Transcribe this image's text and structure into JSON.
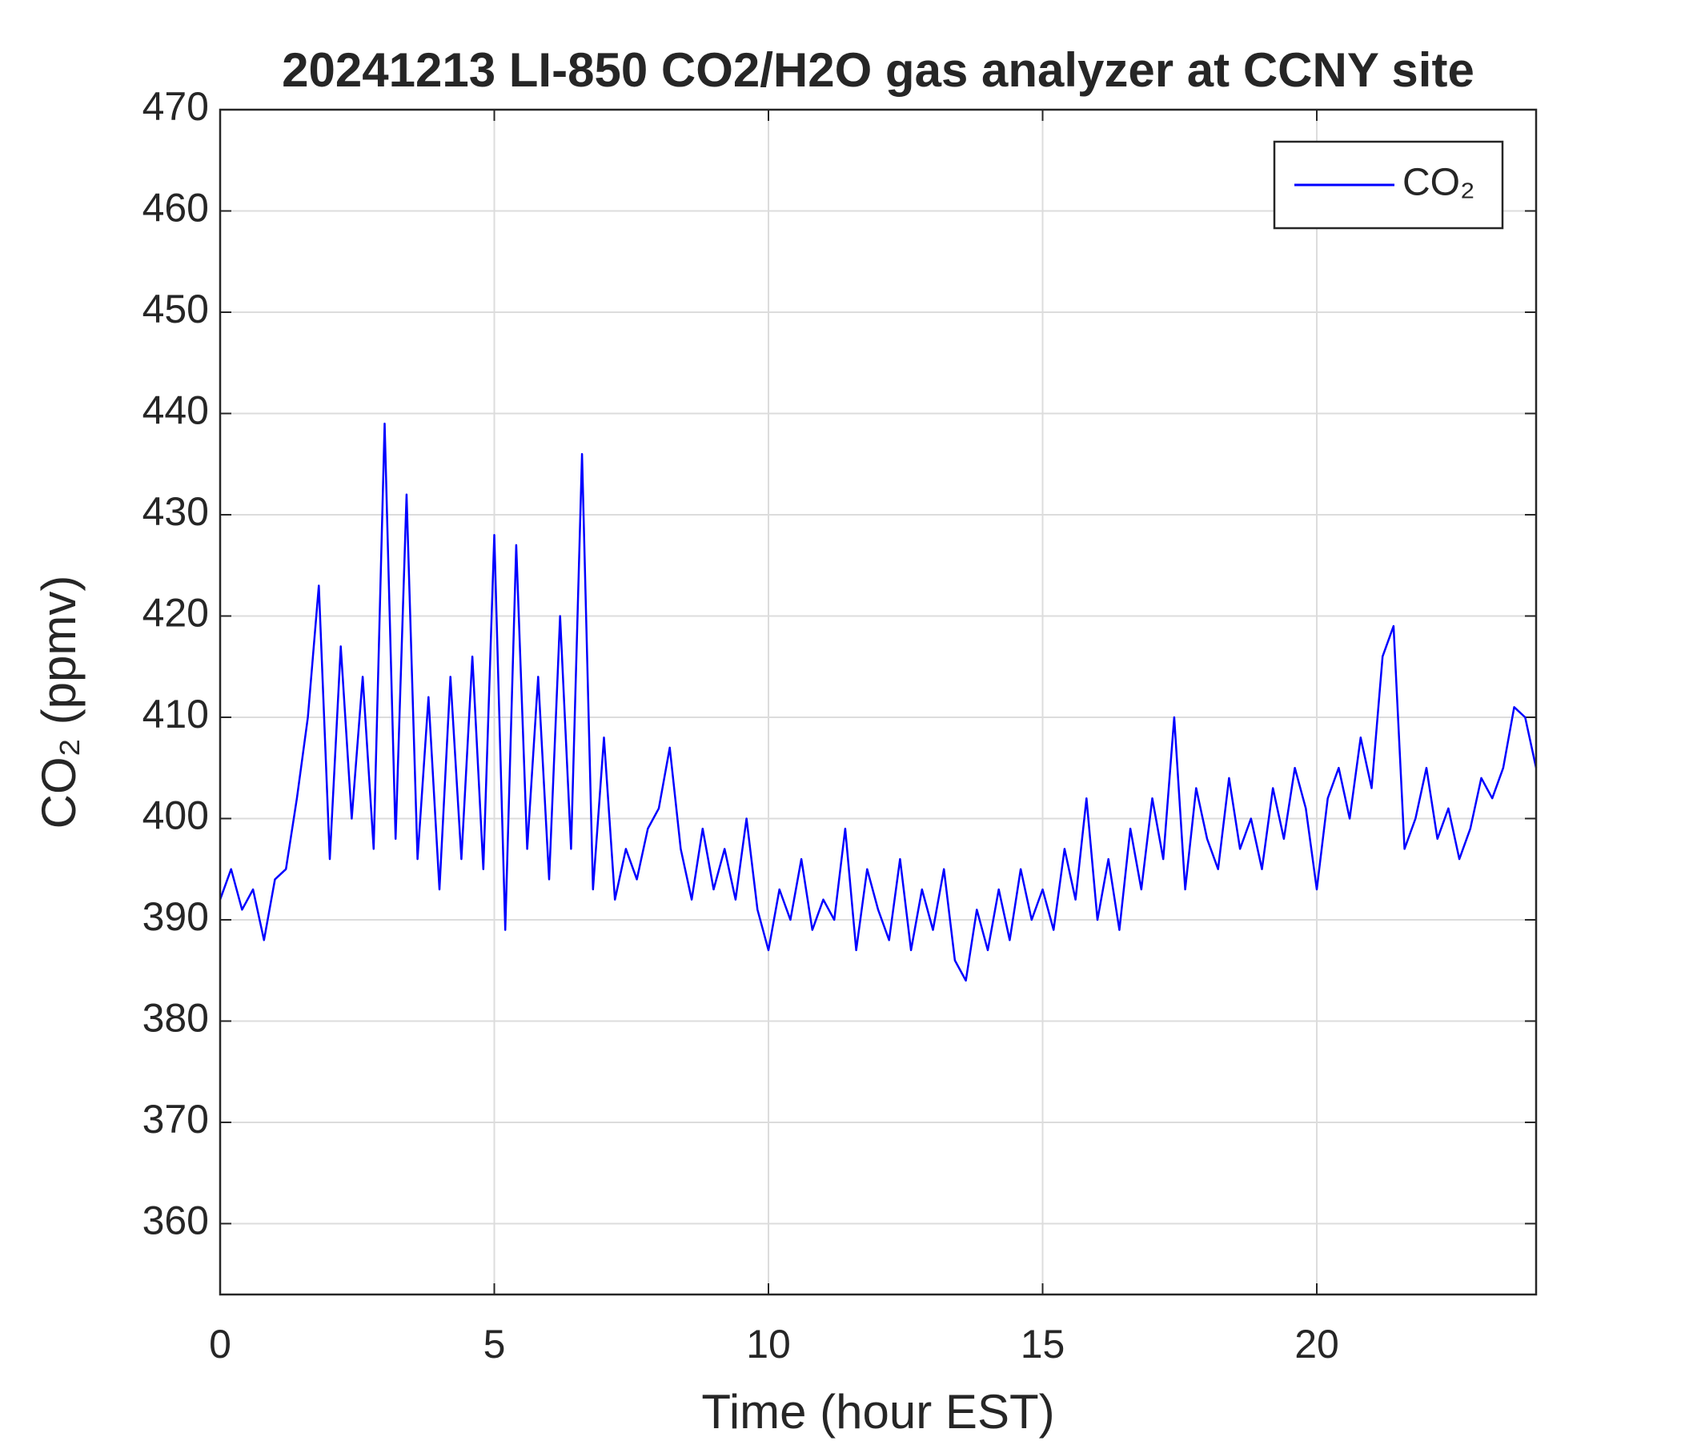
{
  "chart_data": {
    "type": "line",
    "title": "20241213 LI-850 CO2/H2O gas analyzer at CCNY site",
    "xlabel": "Time (hour EST)",
    "ylabel": "CO₂ (ppmv)",
    "x": [
      0,
      0.2,
      0.4,
      0.6,
      0.8,
      1,
      1.2,
      1.4,
      1.6,
      1.8,
      2,
      2.2,
      2.4,
      2.6,
      2.8,
      3,
      3.2,
      3.4,
      3.6,
      3.8,
      4,
      4.2,
      4.4,
      4.6,
      4.8,
      5,
      5.2,
      5.4,
      5.6,
      5.8,
      6,
      6.2,
      6.4,
      6.6,
      6.8,
      7,
      7.2,
      7.4,
      7.6,
      7.8,
      8,
      8.2,
      8.4,
      8.6,
      8.8,
      9,
      9.2,
      9.4,
      9.6,
      9.8,
      10,
      10.2,
      10.4,
      10.6,
      10.8,
      11,
      11.2,
      11.4,
      11.6,
      11.8,
      12,
      12.2,
      12.4,
      12.6,
      12.8,
      13,
      13.2,
      13.4,
      13.6,
      13.8,
      14,
      14.2,
      14.4,
      14.6,
      14.8,
      15,
      15.2,
      15.4,
      15.6,
      15.8,
      16,
      16.2,
      16.4,
      16.6,
      16.8,
      17,
      17.2,
      17.4,
      17.6,
      17.8,
      18,
      18.2,
      18.4,
      18.6,
      18.8,
      19,
      19.2,
      19.4,
      19.6,
      19.8,
      20,
      20.2,
      20.4,
      20.6,
      20.8,
      21,
      21.2,
      21.4,
      21.6,
      21.8,
      22,
      22.2,
      22.4,
      22.6,
      22.8,
      23,
      23.2,
      23.4,
      23.6,
      23.8,
      24
    ],
    "series": [
      {
        "name": "CO₂",
        "color": "#0000ff",
        "values": [
          392,
          395,
          391,
          393,
          388,
          394,
          395,
          402,
          410,
          423,
          396,
          417,
          400,
          414,
          397,
          439,
          398,
          432,
          396,
          412,
          393,
          414,
          396,
          416,
          395,
          428,
          389,
          427,
          397,
          414,
          394,
          420,
          397,
          436,
          393,
          408,
          392,
          397,
          394,
          399,
          401,
          407,
          397,
          392,
          399,
          393,
          397,
          392,
          400,
          391,
          387,
          393,
          390,
          396,
          389,
          392,
          390,
          399,
          387,
          395,
          391,
          388,
          396,
          387,
          393,
          389,
          395,
          386,
          384,
          391,
          387,
          393,
          388,
          395,
          390,
          393,
          389,
          397,
          392,
          402,
          390,
          396,
          389,
          399,
          393,
          402,
          396,
          410,
          393,
          403,
          398,
          395,
          404,
          397,
          400,
          395,
          403,
          398,
          405,
          401,
          393,
          402,
          405,
          400,
          408,
          403,
          416,
          419,
          397,
          400,
          405,
          398,
          401,
          396,
          399,
          404,
          402,
          405,
          411,
          410,
          405
        ]
      }
    ],
    "xlim": [
      0,
      24
    ],
    "ylim": [
      353,
      470
    ],
    "xticks": [
      0,
      5,
      10,
      15,
      20
    ],
    "yticks": [
      360,
      370,
      380,
      390,
      400,
      410,
      420,
      430,
      440,
      450,
      460,
      470
    ],
    "grid": true,
    "legend": "northeast"
  }
}
